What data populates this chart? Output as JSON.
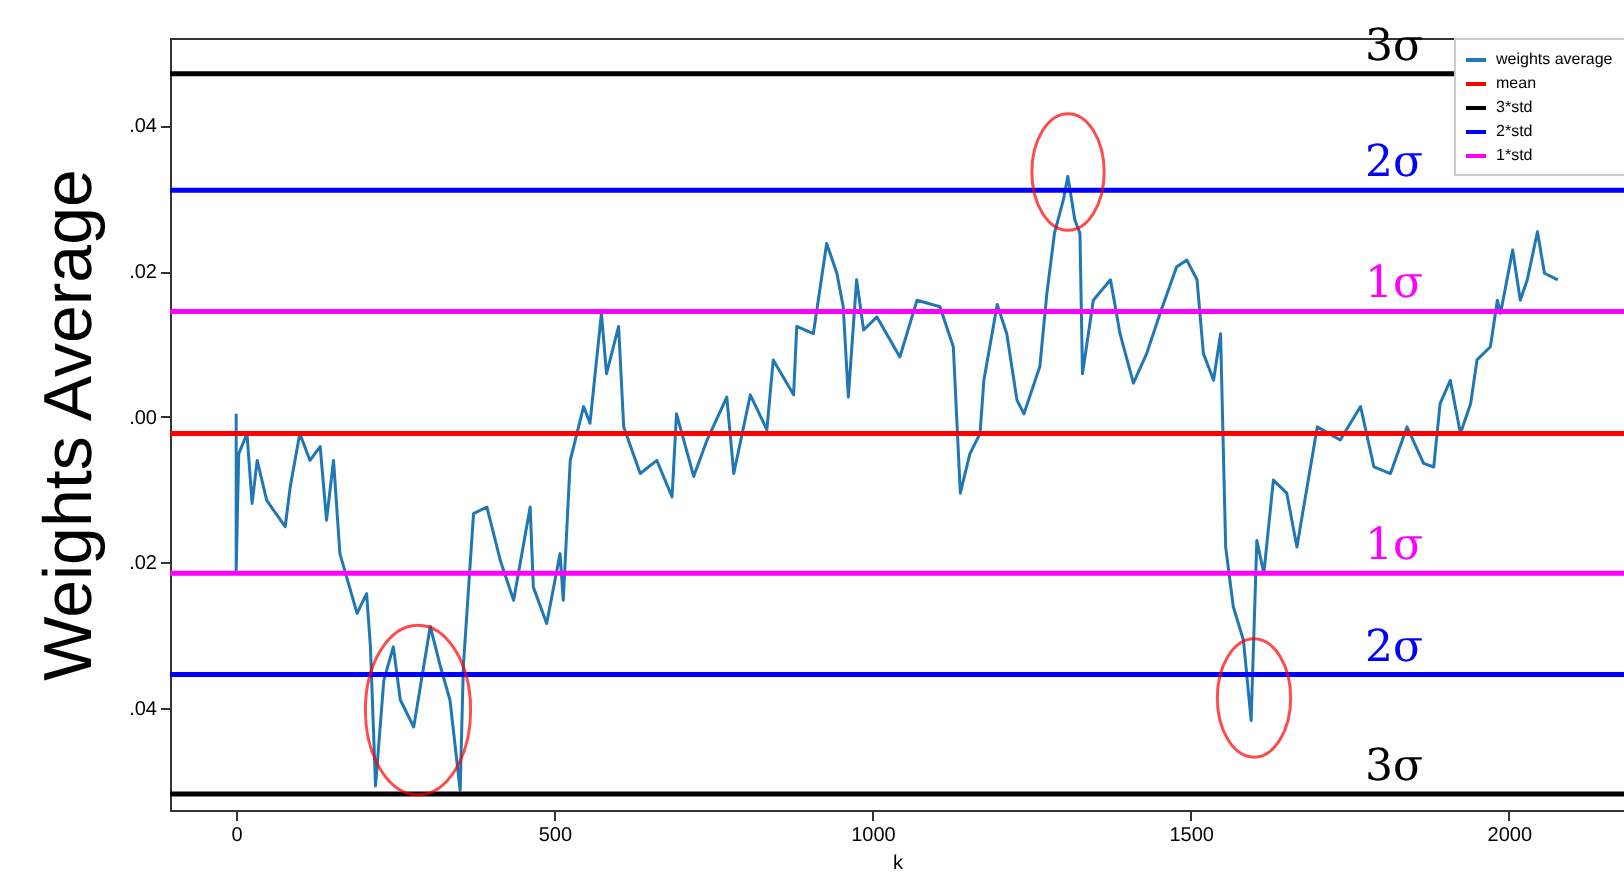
{
  "chart_data": {
    "type": "line",
    "ylabel": "Weights Average",
    "xlabel": "k",
    "xlim": [
      -104,
      2181
    ],
    "xticks": [
      0,
      500,
      1000,
      1500,
      2000
    ],
    "ylim": [
      -0.054,
      0.052
    ],
    "yticks": [
      {
        "value": 0.04,
        "label": ".04"
      },
      {
        "value": 0.02,
        "label": ".02"
      },
      {
        "value": 0.0,
        "label": ".00"
      },
      {
        "value": -0.02,
        "label": ".02"
      },
      {
        "value": -0.04,
        "label": ".04"
      }
    ],
    "grid": false,
    "legend": "top right",
    "series": [
      {
        "name": "weights average",
        "color": "#1f77b4",
        "x": [
          0,
          0,
          4,
          17,
          25,
          33,
          48,
          77,
          85,
          100,
          116,
          132,
          142,
          153,
          163,
          190,
          205,
          211,
          219,
          232,
          247,
          258,
          279,
          305,
          321,
          336,
          352,
          357,
          373,
          394,
          415,
          436,
          462,
          467,
          488,
          509,
          514,
          525,
          546,
          556,
          574,
          582,
          601,
          609,
          635,
          661,
          685,
          692,
          719,
          740,
          771,
          782,
          808,
          834,
          844,
          876,
          881,
          907,
          928,
          944,
          954,
          962,
          975,
          986,
          1007,
          1043,
          1070,
          1106,
          1127,
          1138,
          1153,
          1169,
          1175,
          1196,
          1211,
          1227,
          1238,
          1263,
          1274,
          1286,
          1300,
          1307,
          1318,
          1326,
          1330,
          1347,
          1374,
          1389,
          1410,
          1431,
          1452,
          1478,
          1494,
          1510,
          1520,
          1536,
          1547,
          1555,
          1567,
          1583,
          1595,
          1604,
          1615,
          1630,
          1651,
          1667,
          1683,
          1699,
          1735,
          1767,
          1788,
          1814,
          1840,
          1866,
          1882,
          1892,
          1908,
          1924,
          1940,
          1950,
          1971,
          1982,
          1987,
          2006,
          2018,
          2029,
          2045,
          2056,
          2077
        ],
        "values": [
          0.0004,
          -0.0211,
          -0.0051,
          -0.0023,
          -0.0119,
          -0.006,
          -0.0115,
          -0.0151,
          -0.0096,
          -0.0023,
          -0.006,
          -0.0041,
          -0.0142,
          -0.006,
          -0.0188,
          -0.027,
          -0.0243,
          -0.0316,
          -0.0507,
          -0.0362,
          -0.0316,
          -0.0389,
          -0.0426,
          -0.0288,
          -0.0343,
          -0.0389,
          -0.0513,
          -0.0343,
          -0.0133,
          -0.0124,
          -0.0197,
          -0.0252,
          -0.0124,
          -0.0234,
          -0.0284,
          -0.0188,
          -0.0252,
          -0.006,
          0.0014,
          -0.0009,
          0.0142,
          0.0059,
          0.0124,
          -0.0014,
          -0.0078,
          -0.006,
          -0.011,
          0.0004,
          -0.0082,
          -0.0032,
          0.0027,
          -0.0078,
          0.003,
          -0.0018,
          0.0078,
          0.003,
          0.0124,
          0.0114,
          0.0238,
          0.0197,
          0.0151,
          0.0027,
          0.0188,
          0.0119,
          0.0137,
          0.0082,
          0.016,
          0.0151,
          0.0096,
          -0.0105,
          -0.0051,
          -0.0023,
          0.005,
          0.0154,
          0.0114,
          0.0023,
          0.0004,
          0.0069,
          0.0169,
          0.0252,
          0.0298,
          0.033,
          0.027,
          0.0252,
          0.0059,
          0.016,
          0.0188,
          0.0114,
          0.0046,
          0.0087,
          0.0142,
          0.0206,
          0.0215,
          0.0188,
          0.0087,
          0.005,
          0.0114,
          -0.0179,
          -0.0261,
          -0.0307,
          -0.0417,
          -0.017,
          -0.0215,
          -0.0087,
          -0.0105,
          -0.0179,
          -0.0096,
          -0.0014,
          -0.0032,
          0.0014,
          -0.0069,
          -0.0078,
          -0.0014,
          -0.0064,
          -0.0069,
          0.0018,
          0.005,
          -0.0023,
          0.0018,
          0.0078,
          0.0096,
          0.016,
          0.0142,
          0.0229,
          0.016,
          0.0188,
          0.0254,
          0.0197,
          0.0188
        ]
      }
    ],
    "ref_lines": [
      {
        "axis": "y",
        "value": -0.0023,
        "label": "mean",
        "color": "#ff0000"
      },
      {
        "axis": "y",
        "value": 0.0471,
        "label": "3*std",
        "color": "#000000"
      },
      {
        "axis": "y",
        "value": 0.0311,
        "label": "2*std",
        "color": "#0000ff"
      },
      {
        "axis": "y",
        "value": 0.01445,
        "label": "1*std",
        "color": "#ff00ff"
      },
      {
        "axis": "y",
        "value": -0.0215,
        "color": "#ff00ff"
      },
      {
        "axis": "y",
        "value": -0.0354,
        "color": "#0000ff"
      },
      {
        "axis": "y",
        "value": -0.0518,
        "color": "#000000"
      }
    ],
    "annotations": [
      "3σ",
      "2σ",
      "1σ",
      "1σ",
      "2σ",
      "3σ"
    ]
  }
}
